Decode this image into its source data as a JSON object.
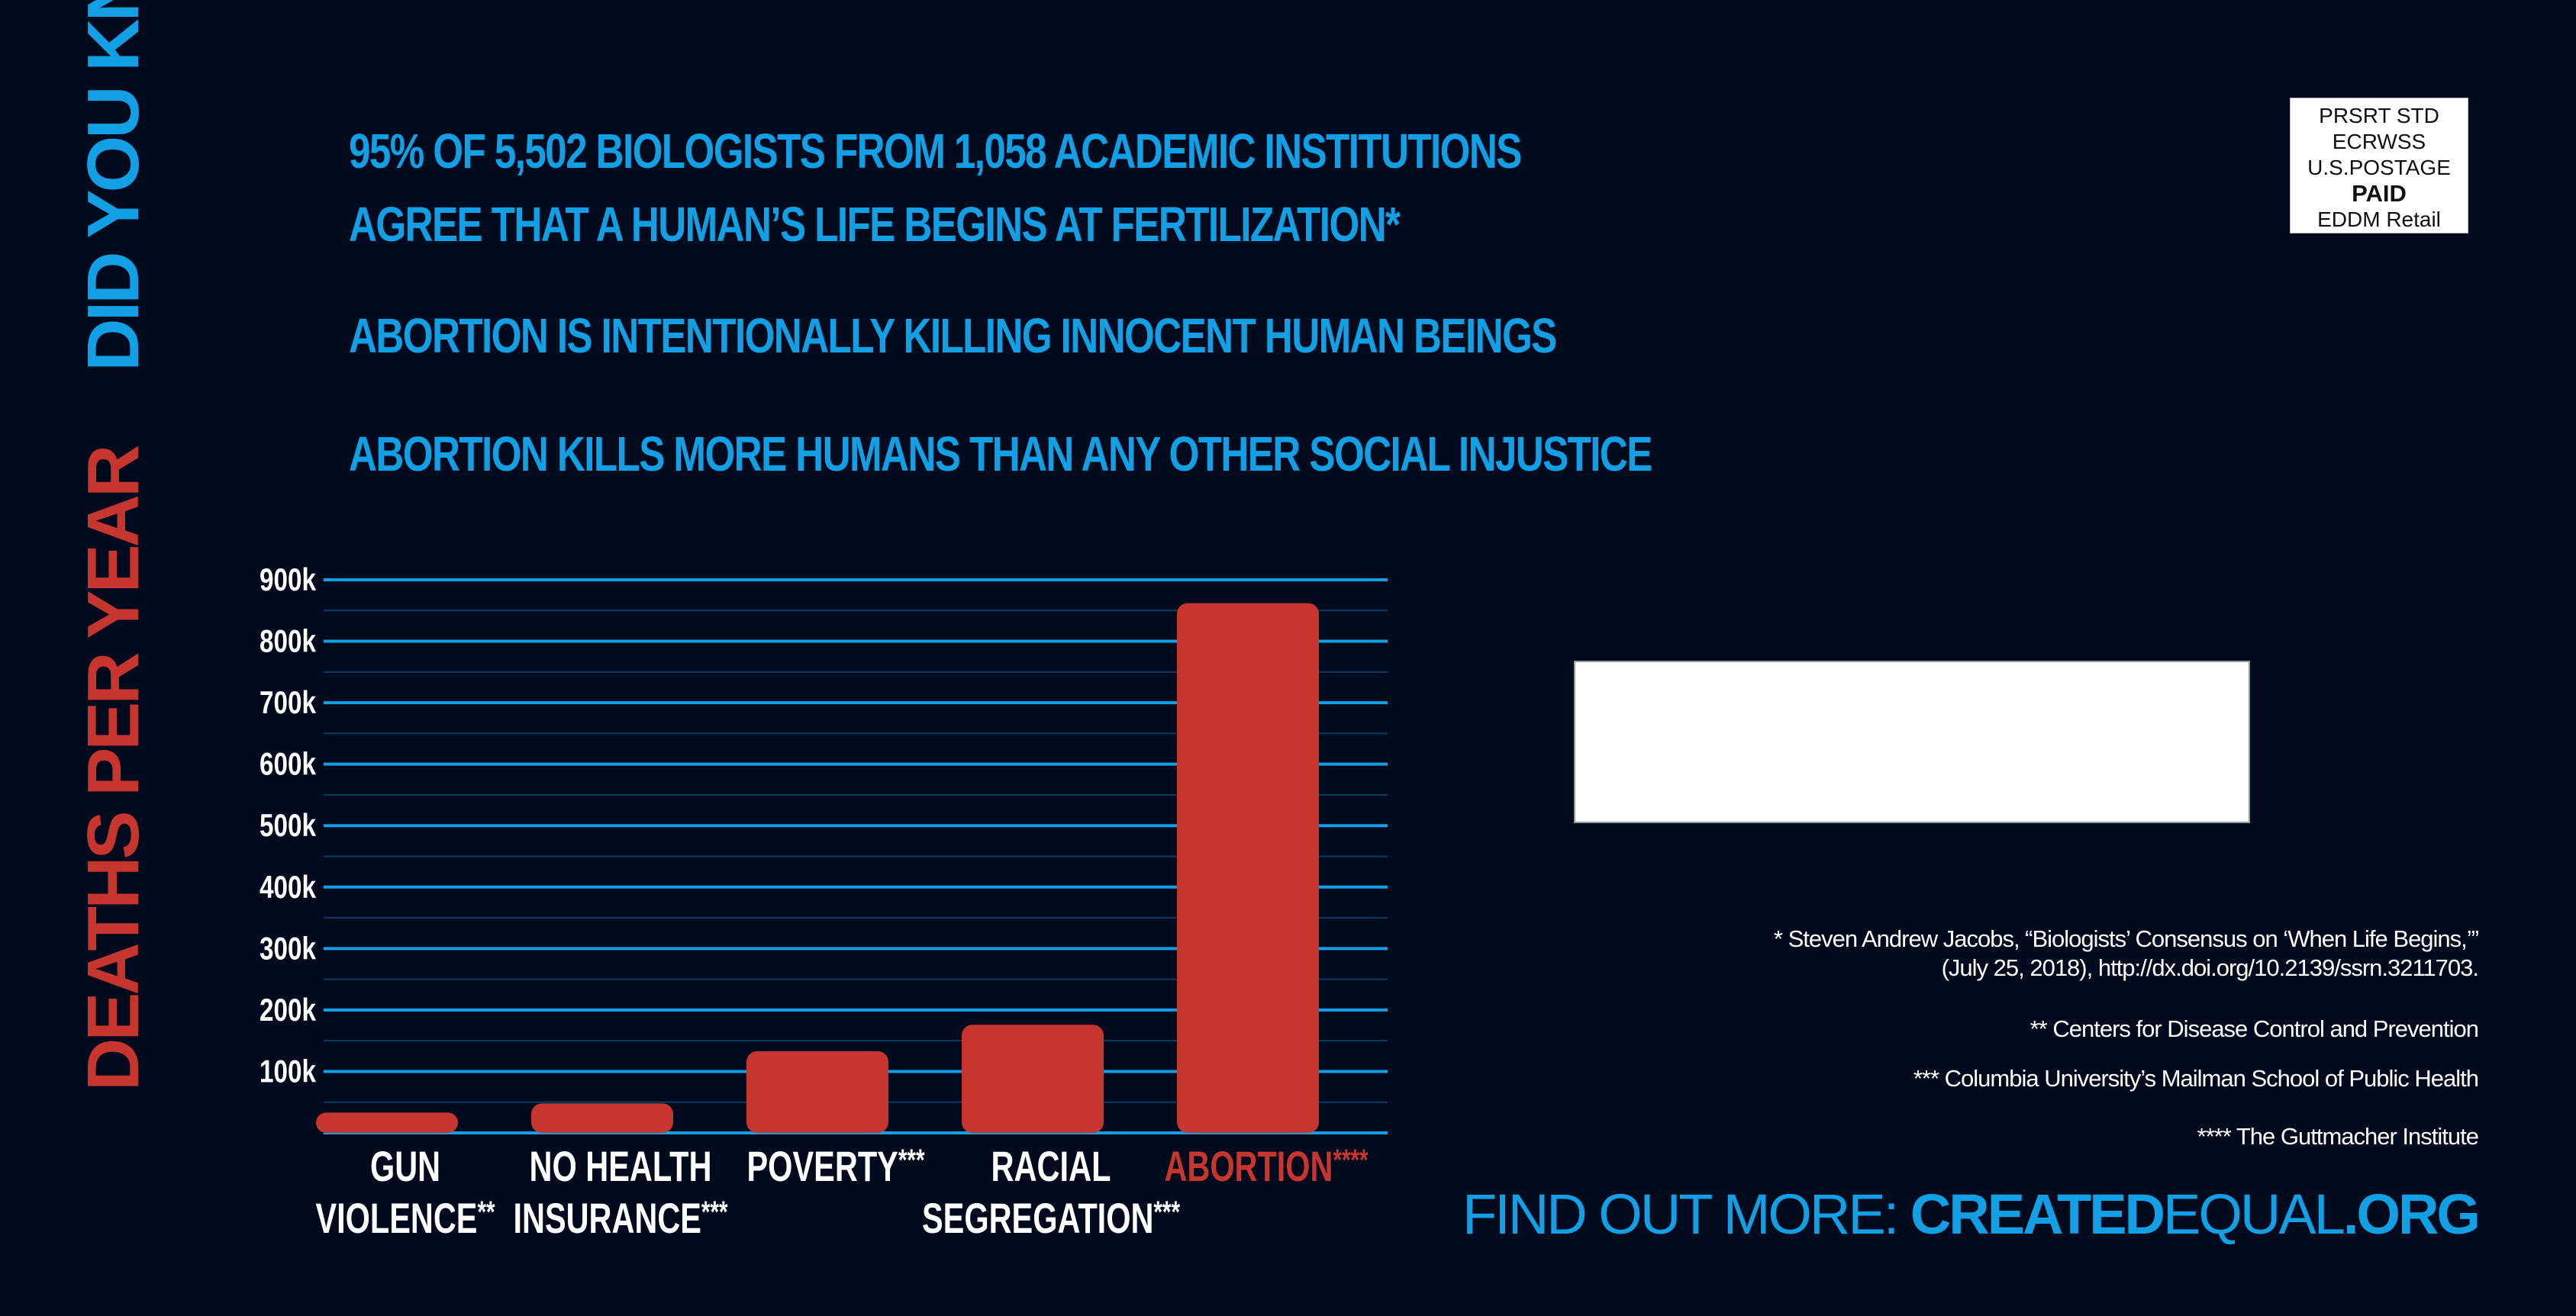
{
  "side_title": {
    "red": "DEATHS PER YEAR",
    "blue": "DID YOU KNOW?"
  },
  "headlines": {
    "line1a": "95% OF 5,502 BIOLOGISTS FROM 1,058 ACADEMIC INSTITUTIONS",
    "line1b": "AGREE THAT A HUMAN’S LIFE BEGINS AT FERTILIZATION*",
    "line2": "ABORTION IS INTENTIONALLY KILLING INNOCENT HUMAN BEINGS",
    "line3": "ABORTION KILLS MORE HUMANS THAN ANY OTHER SOCIAL INJUSTICE"
  },
  "postage": {
    "l1": "PRSRT STD",
    "l2": "ECRWSS",
    "l3": "U.S.POSTAGE",
    "l4": "PAID",
    "l5": "EDDM Retail"
  },
  "footnotes": {
    "f1a": "* Steven Andrew Jacobs, “Biologists’ Consensus on ‘When Life Begins,’”",
    "f1b": "(July 25, 2018), http://dx.doi.org/10.2139/ssrn.3211703.",
    "f2": "** Centers for Disease Control and Prevention",
    "f3": "*** Columbia University’s Mailman School of Public Health",
    "f4": "**** The Guttmacher Institute"
  },
  "cta": {
    "lead": "FIND OUT MORE: ",
    "url_a": "CREATED",
    "url_b": "EQUAL",
    "url_c": ".ORG"
  },
  "colors": {
    "background": "#020a1e",
    "blue": "#139fe3",
    "red": "#c7352f",
    "white": "#ffffff"
  },
  "chart_data": {
    "type": "bar",
    "categories": [
      {
        "lines": [
          "GUN",
          "VIOLENCE"
        ],
        "mark": "**"
      },
      {
        "lines": [
          "NO HEALTH",
          "INSURANCE"
        ],
        "mark": "***"
      },
      {
        "lines": [
          "POVERTY"
        ],
        "mark": "***"
      },
      {
        "lines": [
          "RACIAL",
          "SEGREGATION"
        ],
        "mark": "***"
      },
      {
        "lines": [
          "ABORTION"
        ],
        "mark": "****",
        "highlight": true
      }
    ],
    "values": [
      33000,
      48000,
      133000,
      176000,
      862000
    ],
    "yticks": [
      "100k",
      "200k",
      "300k",
      "400k",
      "500k",
      "600k",
      "700k",
      "800k",
      "900k"
    ],
    "ylim": [
      0,
      900000
    ],
    "grid": true
  }
}
